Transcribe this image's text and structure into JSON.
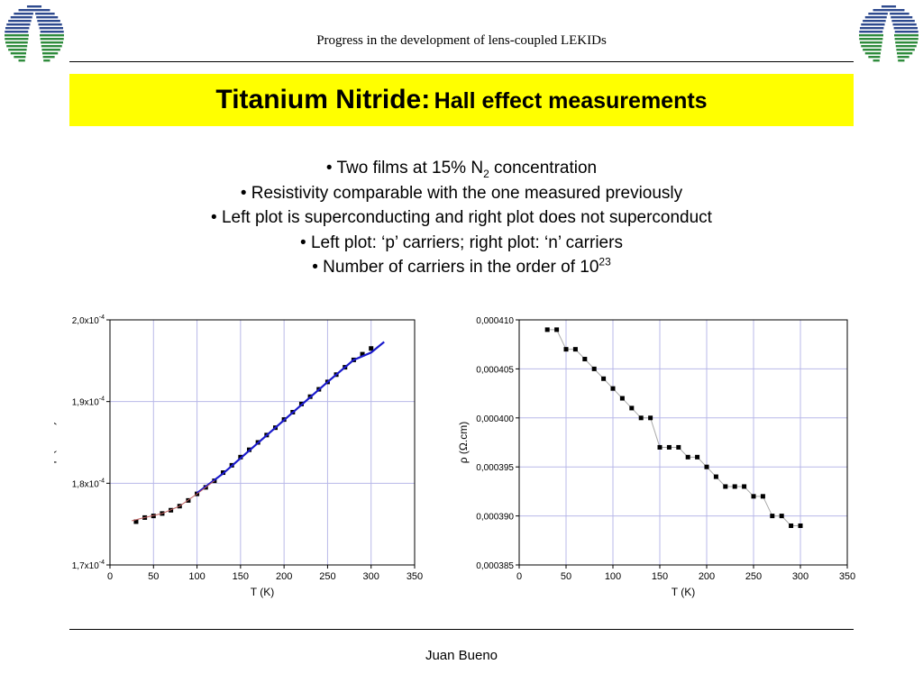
{
  "header": {
    "title": "Progress in the development of lens-coupled LEKIDs",
    "logo_icon": "observatory-stripes-logo",
    "logo_colors": [
      "#2e4a8e",
      "#2e8b3c"
    ]
  },
  "slide": {
    "title_main": "Titanium Nitride:",
    "title_sub": "Hall effect measurements",
    "title_bg": "#ffff00",
    "bullets": [
      {
        "text": "• Two films at 15% N",
        "sub": "2",
        "after": " concentration"
      },
      {
        "text": "• Resistivity comparable with the one measured previously"
      },
      {
        "text": "• Left plot is superconducting and right plot does not superconduct"
      },
      {
        "text": "• Left plot: ‘p’ carriers; right plot: ‘n’ carriers"
      },
      {
        "text": "• Number of carriers in the order of 10",
        "sup": "23"
      }
    ]
  },
  "footer": {
    "author": "Juan Bueno"
  },
  "chart_data": [
    {
      "type": "scatter",
      "xlabel": "T (K)",
      "ylabel": "ρ (Ω.cm)",
      "xlim": [
        0,
        350
      ],
      "ylim": [
        0.00017,
        0.0002
      ],
      "xticks": [
        0,
        50,
        100,
        150,
        200,
        250,
        300,
        350
      ],
      "yticks": [
        0.00017,
        0.00018,
        0.00019,
        0.0002
      ],
      "ytick_labels": [
        "1,7x10",
        "1,8x10",
        "1,9x10",
        "2,0x10"
      ],
      "ytick_exponent": "-4",
      "grid": true,
      "series": [
        {
          "marker": "square",
          "color": "#000000",
          "x": [
            30,
            40,
            50,
            60,
            70,
            80,
            90,
            100,
            110,
            120,
            130,
            140,
            150,
            160,
            170,
            180,
            190,
            200,
            210,
            220,
            230,
            240,
            250,
            260,
            270,
            280,
            290,
            300
          ],
          "y": [
            0.0001753,
            0.0001758,
            0.000176,
            0.0001763,
            0.0001767,
            0.0001772,
            0.0001779,
            0.0001787,
            0.0001795,
            0.0001803,
            0.0001813,
            0.0001822,
            0.0001832,
            0.0001841,
            0.000185,
            0.0001859,
            0.0001868,
            0.0001878,
            0.0001887,
            0.0001897,
            0.0001906,
            0.0001915,
            0.0001924,
            0.0001933,
            0.0001942,
            0.0001951,
            0.0001958,
            0.0001965
          ]
        },
        {
          "style": "line",
          "color": "#1a1acc",
          "x": [
            100,
            130,
            160,
            190,
            220,
            250,
            280,
            300,
            315
          ],
          "y": [
            0.0001788,
            0.0001812,
            0.000184,
            0.0001868,
            0.0001896,
            0.0001924,
            0.0001951,
            0.000196,
            0.0001973
          ]
        },
        {
          "style": "line",
          "color": "#c06060",
          "x": [
            25,
            40,
            60,
            80,
            100,
            120
          ],
          "y": [
            0.0001754,
            0.0001758,
            0.0001763,
            0.0001772,
            0.0001787,
            0.0001803
          ]
        }
      ]
    },
    {
      "type": "line",
      "xlabel": "T (K)",
      "ylabel": "ρ (Ω.cm)",
      "xlim": [
        0,
        350
      ],
      "ylim": [
        0.000385,
        0.00041
      ],
      "xticks": [
        0,
        50,
        100,
        150,
        200,
        250,
        300,
        350
      ],
      "yticks": [
        0.000385,
        0.00039,
        0.000395,
        0.0004,
        0.000405,
        0.00041
      ],
      "ytick_labels": [
        "0,000385",
        "0,000390",
        "0,000395",
        "0,000400",
        "0,000405",
        "0,000410"
      ],
      "grid": true,
      "series": [
        {
          "marker": "square",
          "color": "#000000",
          "line_color": "#aaaaaa",
          "x": [
            30,
            40,
            50,
            60,
            70,
            80,
            90,
            100,
            110,
            120,
            130,
            140,
            150,
            160,
            170,
            180,
            190,
            200,
            210,
            220,
            230,
            240,
            250,
            260,
            270,
            280,
            290,
            300
          ],
          "y": [
            0.000409,
            0.000409,
            0.000407,
            0.000407,
            0.000406,
            0.000405,
            0.000404,
            0.000403,
            0.000402,
            0.000401,
            0.0004,
            0.0004,
            0.000397,
            0.000397,
            0.000397,
            0.000396,
            0.000396,
            0.000395,
            0.000394,
            0.000393,
            0.000393,
            0.000393,
            0.000392,
            0.000392,
            0.00039,
            0.00039,
            0.000389,
            0.000389
          ]
        }
      ]
    }
  ]
}
